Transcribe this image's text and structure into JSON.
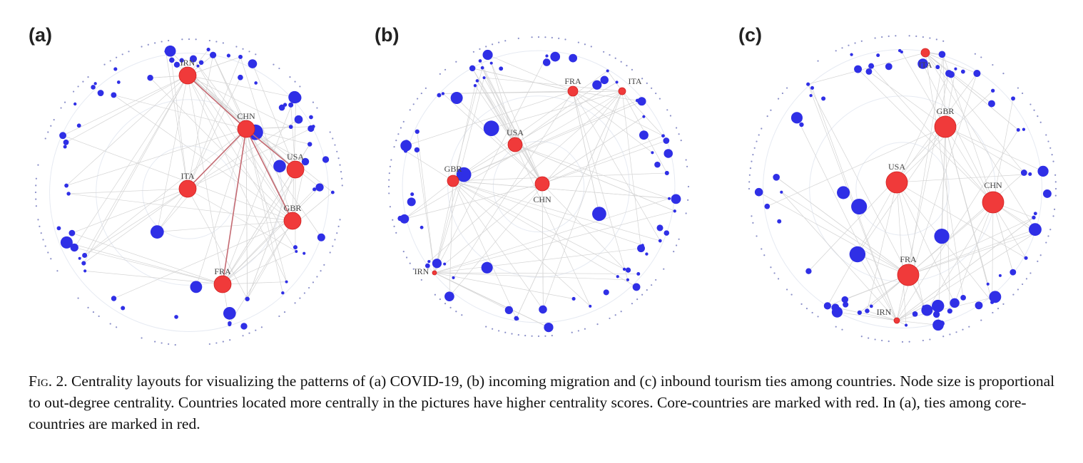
{
  "figure": {
    "panels": [
      {
        "label": "(a)",
        "nodes": [
          {
            "label": "IRN"
          },
          {
            "label": "CHN"
          },
          {
            "label": "USA"
          },
          {
            "label": "ITA"
          },
          {
            "label": "GBR"
          },
          {
            "label": "FRA"
          }
        ]
      },
      {
        "label": "(b)",
        "nodes": [
          {
            "label": "FRA"
          },
          {
            "label": "ITA"
          },
          {
            "label": "USA"
          },
          {
            "label": "GBR"
          },
          {
            "label": "CHN"
          },
          {
            "label": "IRN"
          }
        ]
      },
      {
        "label": "(c)",
        "nodes": [
          {
            "label": "ITA"
          },
          {
            "label": "GBR"
          },
          {
            "label": "USA"
          },
          {
            "label": "CHN"
          },
          {
            "label": "FRA"
          },
          {
            "label": "IRN"
          }
        ]
      }
    ],
    "caption": {
      "number": "Fig. 2.",
      "text": "Centrality layouts for visualizing the patterns of (a) COVID-19, (b) incoming migration and (c) inbound tourism ties among countries. Node size is proportional to out-degree centrality. Countries located more centrally in the pictures have higher centrality scores. Core-countries are marked with red. In (a), ties among core-countries are marked in red."
    }
  }
}
